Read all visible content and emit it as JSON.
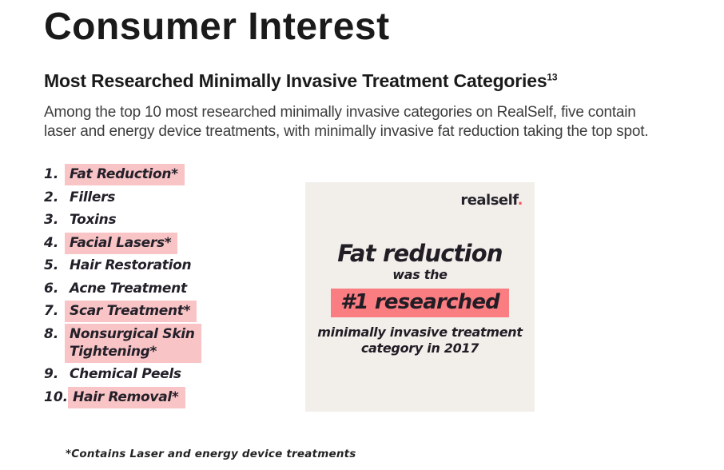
{
  "page": {
    "title": "Consumer Interest",
    "subtitle": "Most Researched Minimally Invasive Treatment Categories",
    "subtitle_ref": "13",
    "intro": "Among the top 10 most researched minimally invasive categories on RealSelf, five contain\nlaser and energy device treatments, with minimally invasive fat reduction taking the top spot.",
    "footnote": "*Contains Laser and energy device treatments"
  },
  "list": {
    "items": [
      {
        "number": "1.",
        "label": "Fat Reduction*",
        "highlighted": true
      },
      {
        "number": "2.",
        "label": "Fillers",
        "highlighted": false
      },
      {
        "number": "3.",
        "label": "Toxins",
        "highlighted": false
      },
      {
        "number": "4.",
        "label": "Facial Lasers*",
        "highlighted": true
      },
      {
        "number": "5.",
        "label": "Hair Restoration",
        "highlighted": false
      },
      {
        "number": "6.",
        "label": "Acne Treatment",
        "highlighted": false
      },
      {
        "number": "7.",
        "label": "Scar Treatment*",
        "highlighted": true
      },
      {
        "number": "8.",
        "label": "Nonsurgical Skin\nTightening*",
        "highlighted": true
      },
      {
        "number": "9.",
        "label": "Chemical Peels",
        "highlighted": false
      },
      {
        "number": "10.",
        "label": "Hair Removal*",
        "highlighted": true
      }
    ]
  },
  "card": {
    "logo_text": "realself",
    "logo_dot": ".",
    "headline": "Fat reduction",
    "subline": "was the",
    "highlight_stat": "#1 researched",
    "caption": "minimally invasive treatment\ncategory in 2017"
  },
  "colors": {
    "highlight_light_pink": "#f9c4c6",
    "highlight_salmon": "#fa7d81",
    "brand_accent_red": "#f4585c",
    "card_background": "#f2efeb",
    "text_dark": "#201d25"
  }
}
